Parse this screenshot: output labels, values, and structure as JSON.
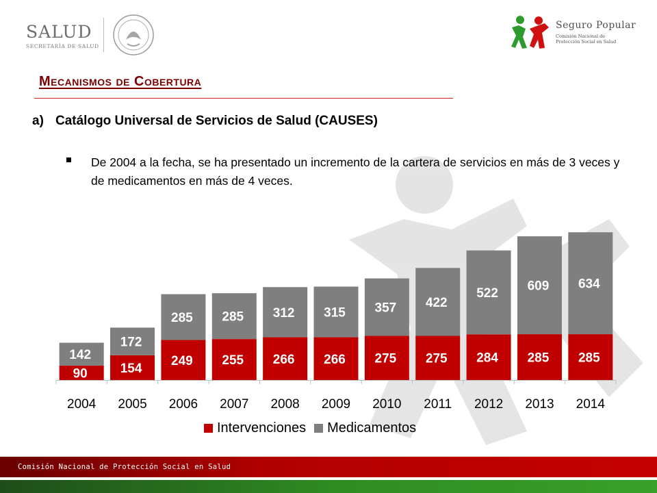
{
  "header": {
    "salud_word": "SALUD",
    "salud_sub": "SECRETARÍA DE SALUD",
    "sp_title": "Seguro Popular",
    "sp_sub_1": "Comisión Nacional de",
    "sp_sub_2": "Protección Social en Salud"
  },
  "title": "Mecanismos de Cobertura",
  "subheading": {
    "marker": "a)",
    "text": "Catálogo Universal de Servicios de Salud (CAUSES)"
  },
  "bullet": "De 2004 a la fecha, se ha presentado un incremento de la cartera de servicios en más de 3 veces y de medicamentos en más de 4 veces.",
  "colors": {
    "intervenciones": "#c00000",
    "medicamentos": "#7f7f7f",
    "title": "#7a0000"
  },
  "chart_data": {
    "type": "bar",
    "stacked": true,
    "categories": [
      "2004",
      "2005",
      "2006",
      "2007",
      "2008",
      "2009",
      "2010",
      "2011",
      "2012",
      "2013",
      "2014"
    ],
    "series": [
      {
        "name": "Intervenciones",
        "values": [
          90,
          154,
          249,
          255,
          266,
          266,
          275,
          275,
          284,
          285,
          285
        ]
      },
      {
        "name": "Medicamentos",
        "values": [
          142,
          172,
          285,
          285,
          312,
          315,
          357,
          422,
          522,
          609,
          634
        ]
      }
    ],
    "legend_position": "bottom",
    "grid": false
  },
  "footer": "Comisión Nacional de Protección Social en Salud"
}
